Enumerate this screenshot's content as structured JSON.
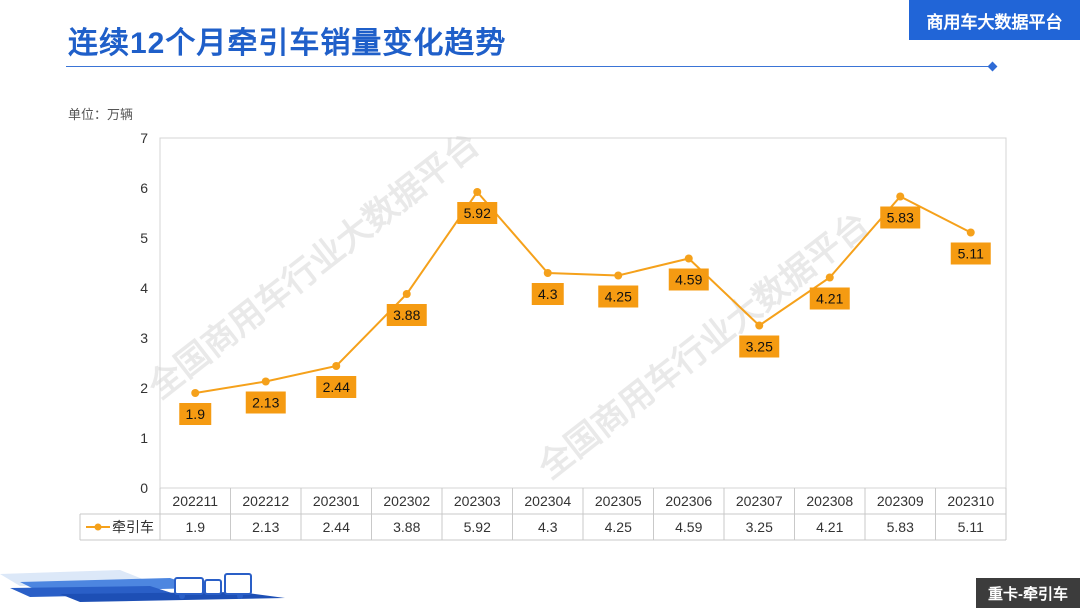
{
  "header": {
    "title": "连续12个月牵引车销量变化趋势",
    "brand": "商用车大数据平台"
  },
  "unit_label": "单位：万辆",
  "footer": {
    "tag": "重卡-牵引车"
  },
  "watermark": "全国商用车行业大数据平台",
  "colors": {
    "accent": "#f5a11b",
    "label_bg": "#f59b12",
    "brand": "#2165d7",
    "title": "#1f5fc9"
  },
  "chart_data": {
    "type": "line",
    "categories": [
      "202211",
      "202212",
      "202301",
      "202302",
      "202303",
      "202304",
      "202305",
      "202306",
      "202307",
      "202308",
      "202309",
      "202310"
    ],
    "series": [
      {
        "name": "牵引车",
        "values": [
          1.9,
          2.13,
          2.44,
          3.88,
          5.92,
          4.3,
          4.25,
          4.59,
          3.25,
          4.21,
          5.83,
          5.11
        ]
      }
    ],
    "ylim": [
      0,
      7
    ],
    "yticks": [
      0,
      1,
      2,
      3,
      4,
      5,
      6,
      7
    ],
    "grid": false,
    "data_table": true
  }
}
